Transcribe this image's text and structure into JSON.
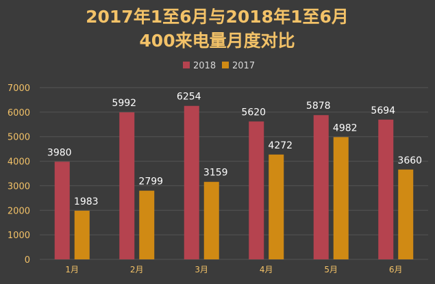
{
  "chart_data": {
    "type": "bar",
    "title_lines": [
      "2017年1至6月与2018年1至6月",
      "400来电量月度对比"
    ],
    "categories": [
      "1月",
      "2月",
      "3月",
      "4月",
      "5月",
      "6月"
    ],
    "series": [
      {
        "name": "2018",
        "color": "#b5434f",
        "values": [
          3980,
          5992,
          6254,
          5620,
          5878,
          5694
        ]
      },
      {
        "name": "2017",
        "color": "#d08a14",
        "values": [
          1983,
          2799,
          3159,
          4272,
          4982,
          3660
        ]
      }
    ],
    "ylim": [
      0,
      7000
    ],
    "yticks": [
      0,
      1000,
      2000,
      3000,
      4000,
      5000,
      6000,
      7000
    ],
    "grid": true,
    "legend_position": "top-center",
    "xlabel": "",
    "ylabel": ""
  }
}
